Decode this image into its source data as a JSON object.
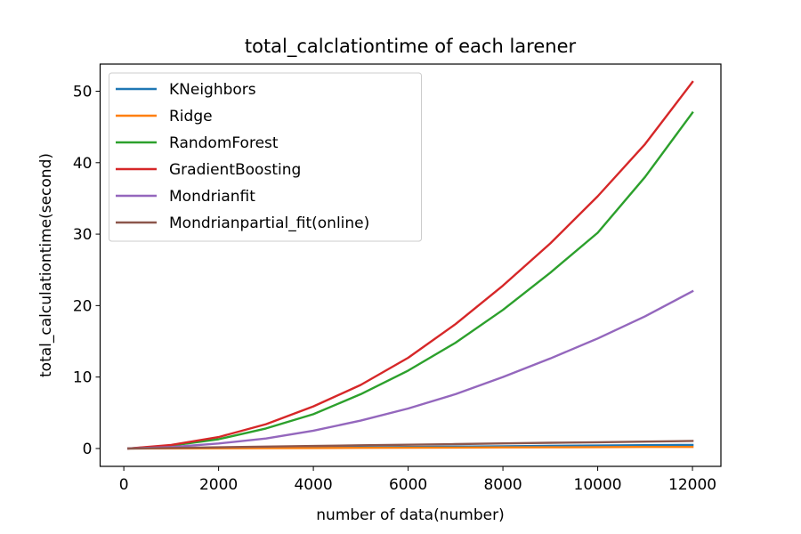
{
  "chart_data": {
    "type": "line",
    "title": "total_calclationtime of each larener",
    "xlabel": "number of data(number)",
    "ylabel": "total_calculationtime(second)",
    "xlim": [
      -500,
      12600
    ],
    "ylim": [
      -2.5,
      53.8
    ],
    "xticks": [
      0,
      2000,
      4000,
      6000,
      8000,
      10000,
      12000
    ],
    "yticks": [
      0,
      10,
      20,
      30,
      40,
      50
    ],
    "grid": false,
    "legend_position": "upper-left",
    "x": [
      100,
      1000,
      2000,
      3000,
      4000,
      5000,
      6000,
      7000,
      8000,
      9000,
      10000,
      11000,
      12000
    ],
    "series": [
      {
        "name": "KNeighbors",
        "color": "#1f77b4",
        "values": [
          0.0,
          0.03,
          0.07,
          0.1,
          0.14,
          0.18,
          0.22,
          0.27,
          0.31,
          0.36,
          0.42,
          0.47,
          0.5
        ]
      },
      {
        "name": "Ridge",
        "color": "#ff7f0e",
        "values": [
          0.0,
          0.01,
          0.03,
          0.05,
          0.07,
          0.09,
          0.11,
          0.13,
          0.15,
          0.17,
          0.19,
          0.21,
          0.22
        ]
      },
      {
        "name": "RandomForest",
        "color": "#2ca02c",
        "values": [
          0.0,
          0.4,
          1.3,
          2.8,
          4.8,
          7.6,
          10.9,
          14.8,
          19.4,
          24.6,
          30.2,
          38.0,
          47.0
        ]
      },
      {
        "name": "GradientBoosting",
        "color": "#d62728",
        "values": [
          0.0,
          0.5,
          1.6,
          3.4,
          5.9,
          8.9,
          12.7,
          17.4,
          22.8,
          28.7,
          35.3,
          42.6,
          51.3
        ]
      },
      {
        "name": "Mondrianfit",
        "color": "#9467bd",
        "values": [
          0.0,
          0.2,
          0.7,
          1.4,
          2.5,
          3.9,
          5.6,
          7.6,
          10.0,
          12.6,
          15.4,
          18.5,
          22.0
        ]
      },
      {
        "name": "Mondrianpartial_fit(online)",
        "color": "#8c564b",
        "values": [
          0.0,
          0.08,
          0.17,
          0.26,
          0.35,
          0.45,
          0.53,
          0.62,
          0.71,
          0.8,
          0.88,
          0.96,
          1.05
        ]
      }
    ]
  }
}
